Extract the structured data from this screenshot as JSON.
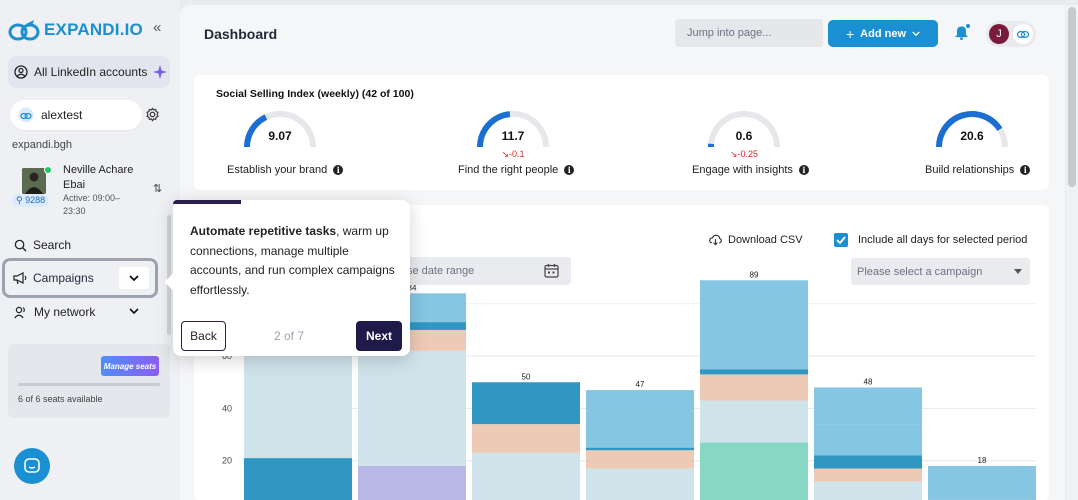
{
  "app": {
    "logo_text": "EXPANDI.IO"
  },
  "sidebar": {
    "all_accounts_label": "All LinkedIn accounts",
    "account_name": "alextest",
    "domain": "expandi.bgh",
    "profile": {
      "name": "Neville Achare Ebai",
      "active": "Active: 09:00–23:30",
      "badge": "9288"
    },
    "nav": {
      "search": "Search",
      "campaigns": "Campaigns",
      "network": "My network"
    },
    "seats": {
      "manage_label": "Manage seats",
      "text": "6 of 6 seats available",
      "used": 6,
      "total": 6
    }
  },
  "header": {
    "title": "Dashboard",
    "jump_placeholder": "Jump into page...",
    "add_new_label": "Add new",
    "user_initial": "J"
  },
  "ssi": {
    "title": "Social Selling Index (weekly) (42 of 100)",
    "gauges": [
      {
        "value": "9.07",
        "delta": "",
        "label": "Establish your brand",
        "level": 0.36
      },
      {
        "value": "11.7",
        "delta": "-0.1",
        "label": "Find the right people",
        "level": 0.47
      },
      {
        "value": "0.6",
        "delta": "-0.25",
        "label": "Engage with insights",
        "level": 0.03
      },
      {
        "value": "20.6",
        "delta": "",
        "label": "Build relationships",
        "level": 0.82
      }
    ]
  },
  "chart_controls": {
    "download_csv": "Download CSV",
    "include_all_days": "Include all days for selected period",
    "date_range_placeholder": "se date range",
    "campaign_placeholder": "Please select a campaign"
  },
  "chart_data": {
    "type": "bar",
    "stacked": true,
    "yticks": [
      20,
      40,
      60
    ],
    "ylim": [
      0,
      92
    ],
    "totals": [
      "",
      "84",
      "50",
      "47",
      "89",
      "48",
      "18"
    ],
    "segment_colors": [
      "#b9b7e6",
      "#cfe3ea",
      "#edcab5",
      "#2f97c1",
      "#85c6e2",
      "#86d8c5"
    ],
    "bars": [
      [
        [
          0,
          21,
          3
        ],
        [
          21,
          61,
          1
        ],
        [
          61,
          74,
          2
        ],
        [
          74,
          78,
          3
        ],
        [
          78,
          85,
          4
        ]
      ],
      [
        [
          0,
          18,
          0
        ],
        [
          18,
          62,
          1
        ],
        [
          62,
          70,
          2
        ],
        [
          70,
          73,
          3
        ],
        [
          73,
          84,
          4
        ]
      ],
      [
        [
          0,
          23,
          1
        ],
        [
          23,
          34,
          2
        ],
        [
          34,
          35,
          3
        ],
        [
          35,
          50,
          3
        ]
      ],
      [
        [
          0,
          17,
          1
        ],
        [
          17,
          24,
          2
        ],
        [
          24,
          25,
          3
        ],
        [
          25,
          47,
          4
        ]
      ],
      [
        [
          0,
          27,
          5
        ],
        [
          27,
          43,
          1
        ],
        [
          43,
          53,
          2
        ],
        [
          53,
          55,
          3
        ],
        [
          55,
          89,
          4
        ]
      ],
      [
        [
          0,
          12,
          1
        ],
        [
          12,
          17,
          2
        ],
        [
          17,
          22,
          3
        ],
        [
          22,
          34,
          4
        ],
        [
          34,
          48,
          4
        ]
      ],
      [
        [
          0,
          2,
          1
        ],
        [
          2,
          3,
          2
        ],
        [
          3,
          5,
          3
        ],
        [
          5,
          18,
          4
        ]
      ]
    ]
  },
  "tour": {
    "bold": "Automate repetitive tasks",
    "rest": ", warm up connections, manage multiple accounts, and run complex campaigns effortlessly.",
    "back": "Back",
    "step": "2 of 7",
    "next": "Next"
  }
}
